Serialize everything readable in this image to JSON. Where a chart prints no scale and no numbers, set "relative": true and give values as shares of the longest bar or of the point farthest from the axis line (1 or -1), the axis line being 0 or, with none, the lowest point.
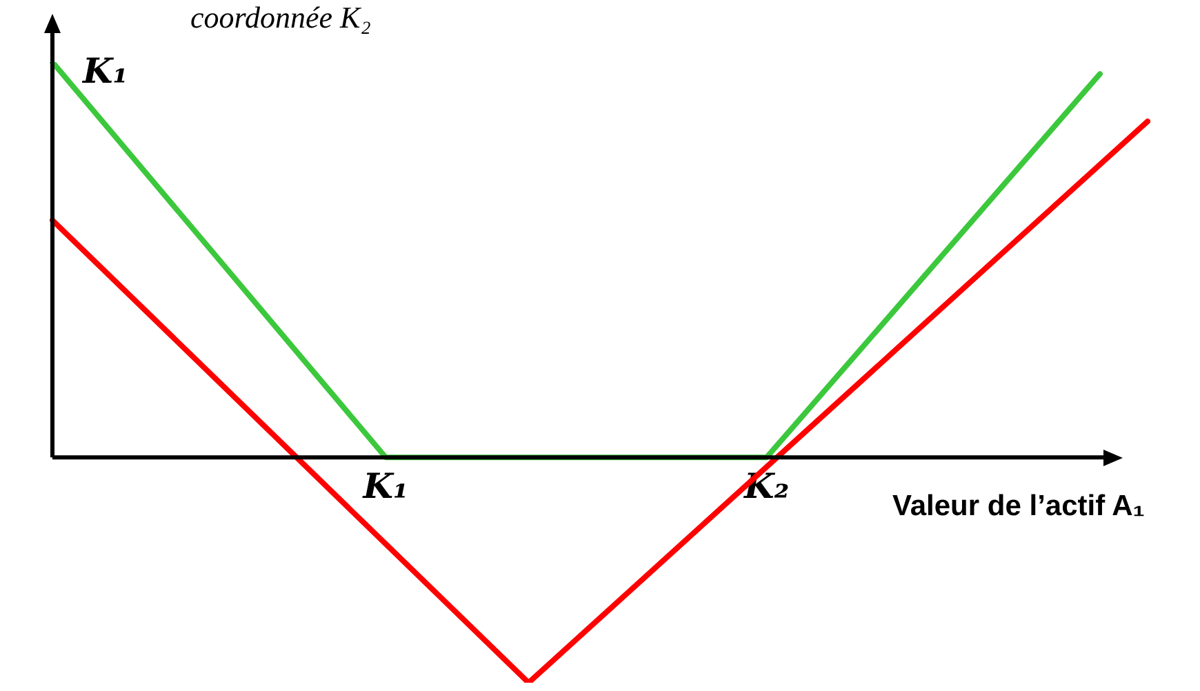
{
  "chart_data": {
    "type": "line",
    "relative": true,
    "categories": [
      null,
      null,
      null,
      null,
      null,
      null,
      null,
      "K₁",
      null,
      null,
      null,
      null,
      null,
      null,
      null,
      "K₂",
      null,
      null,
      null,
      null,
      null,
      null,
      null,
      null
    ],
    "tick_labels": "x",
    "ylabel": "coordonnée K₂",
    "xlabel": "Valeur de l’actif A₁",
    "marker": "none",
    "line_style": "solid",
    "legend": false,
    "series": [
      {
        "color": "#3cc83c",
        "values": [
          1,
          null,
          null,
          null,
          null,
          null,
          null,
          0,
          null,
          null,
          null,
          null,
          null,
          null,
          null,
          0,
          null,
          null,
          null,
          null,
          null,
          null,
          0.97,
          null
        ]
      },
      {
        "color": "#ff0000",
        "values": [
          0.6,
          null,
          null,
          null,
          null,
          null,
          null,
          null,
          null,
          null,
          -0.57,
          null,
          null,
          null,
          null,
          null,
          null,
          null,
          null,
          null,
          null,
          null,
          null,
          0.85
        ]
      }
    ],
    "annotations": [
      "K₁"
    ]
  }
}
